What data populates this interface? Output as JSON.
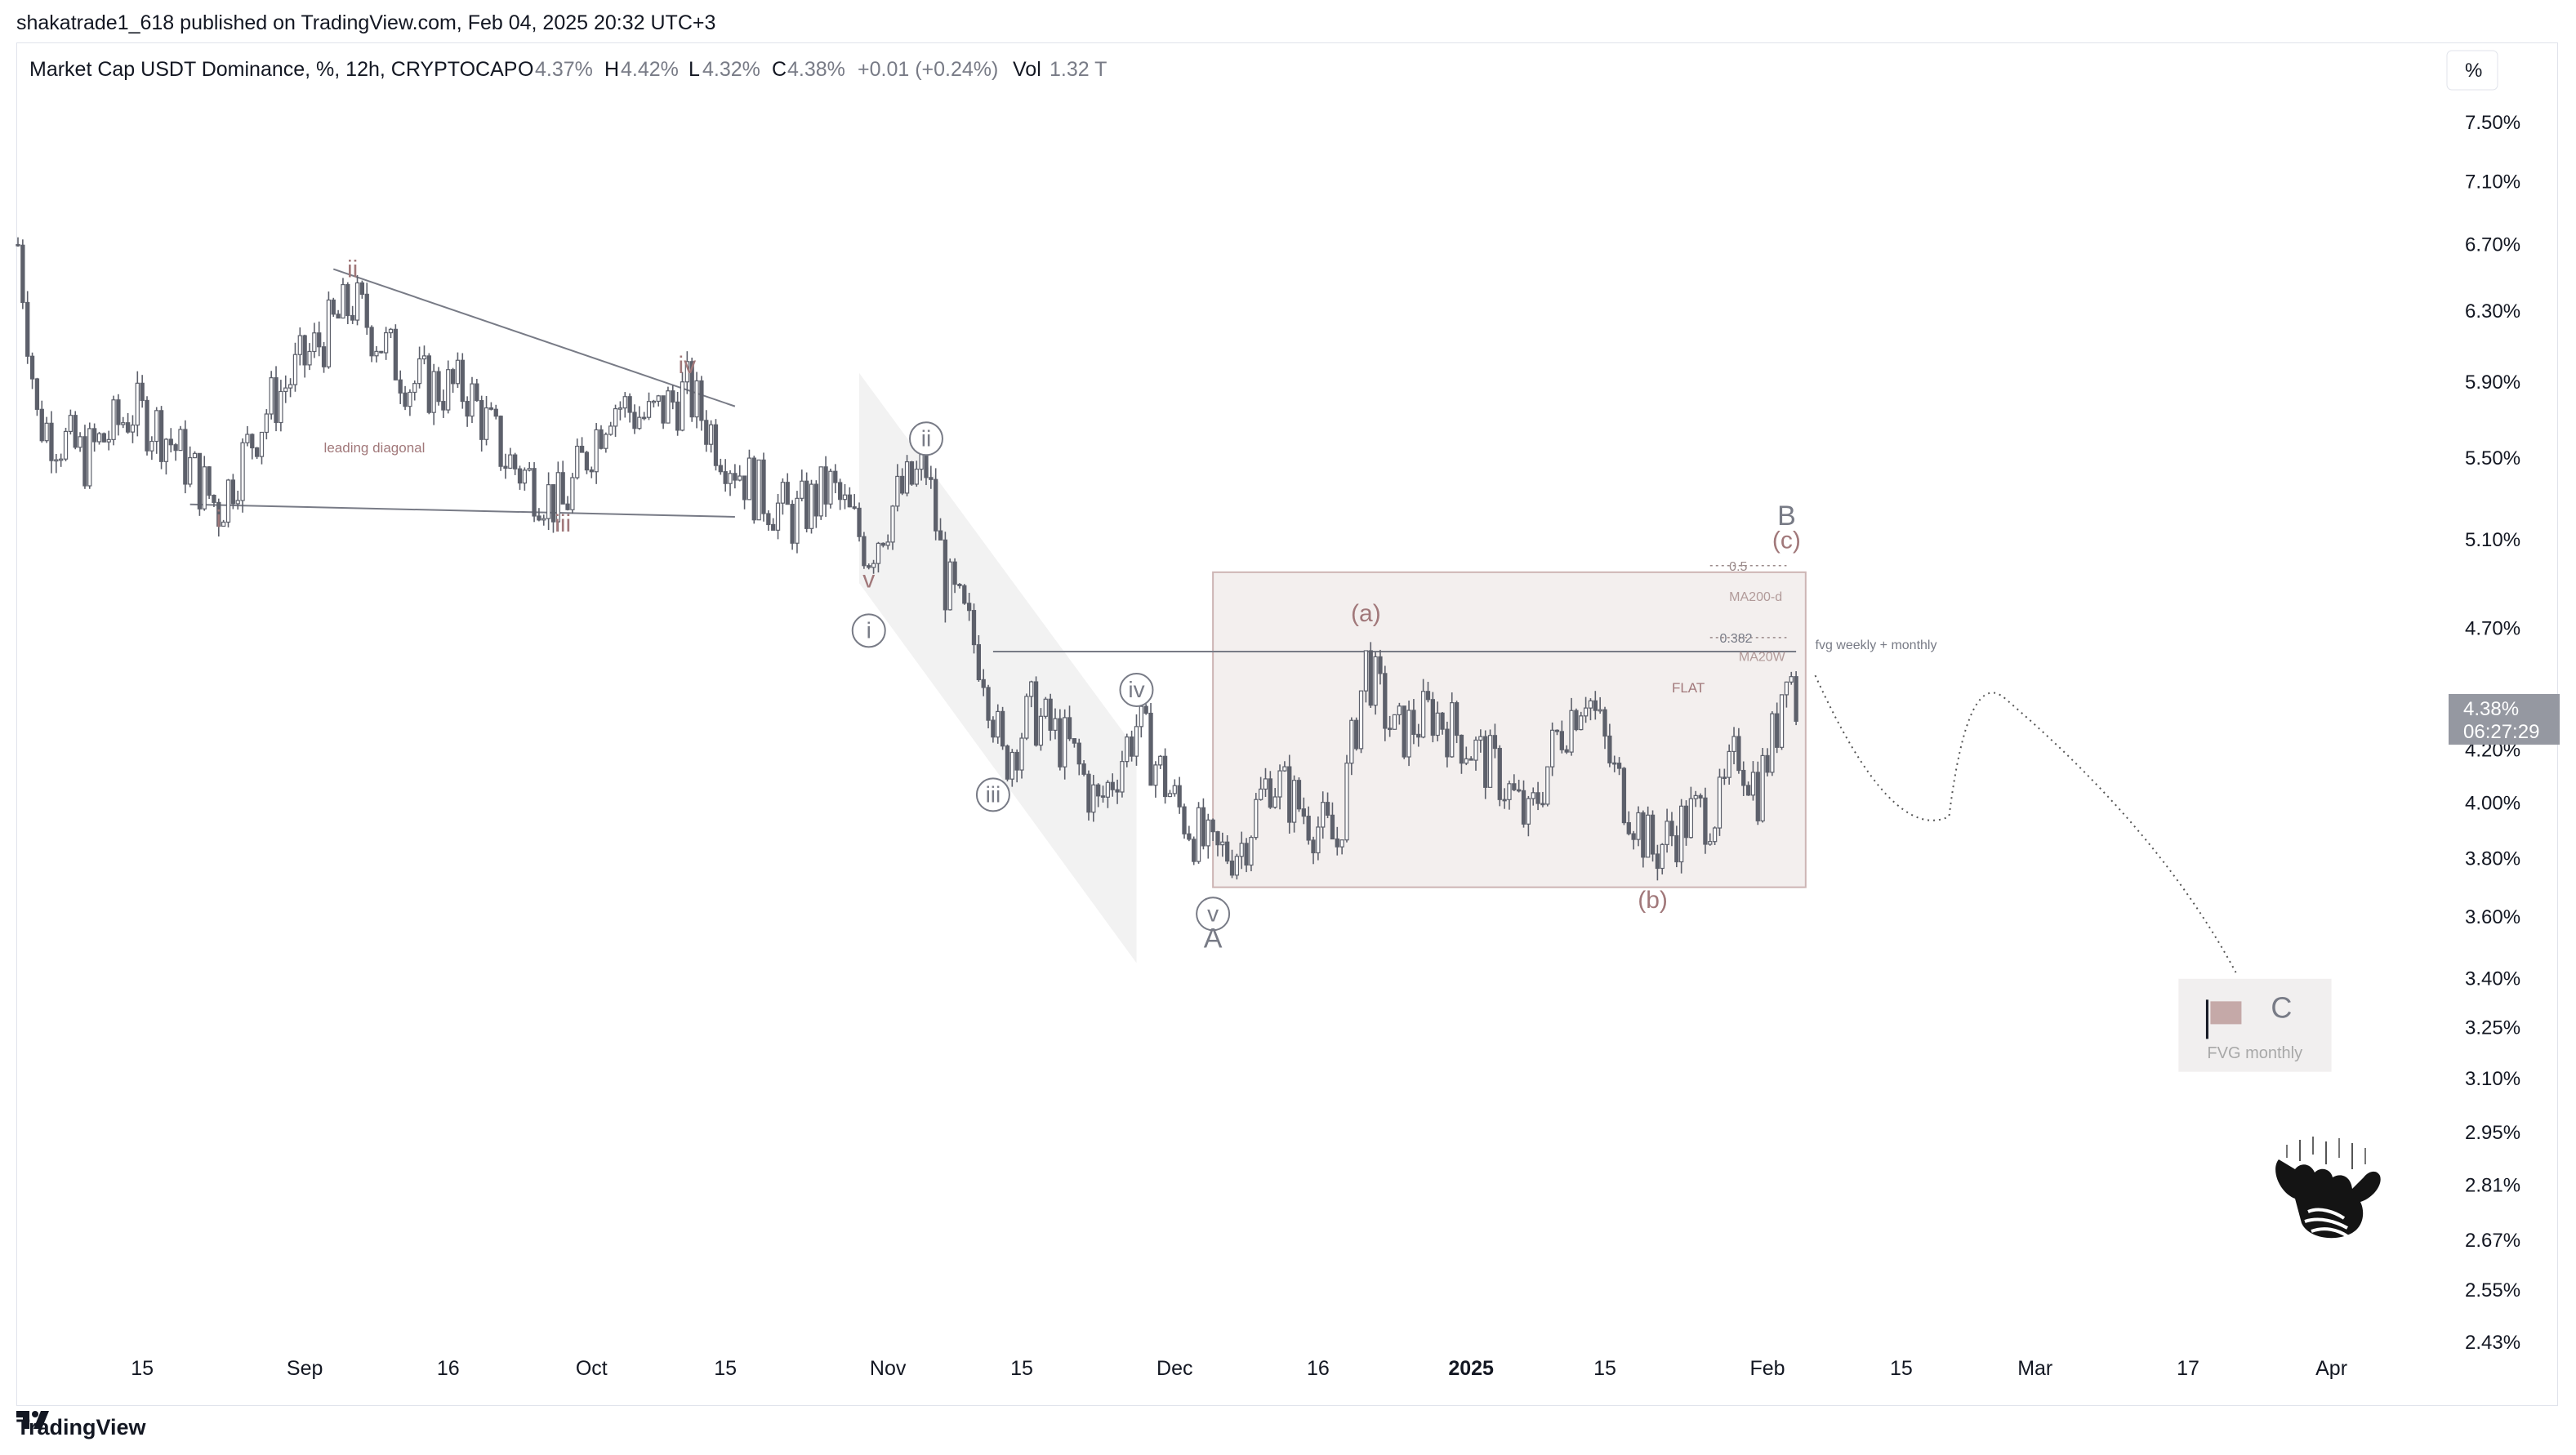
{
  "header": {
    "published_by": "shakatrade1_618 published on TradingView.com, Feb 04, 2025 20:32 UTC+3"
  },
  "legend": {
    "symbol": "Market Cap USDT Dominance, %, 12h, CRYPTOCAP",
    "o_label": "O",
    "o_value": "4.37%",
    "h_label": "H",
    "h_value": "4.42%",
    "l_label": "L",
    "l_value": "4.32%",
    "c_label": "C",
    "c_value": "4.38%",
    "change": "+0.01 (+0.24%)",
    "vol_label": "Vol",
    "vol_value": "1.32 T"
  },
  "scale_unit": "%",
  "price_tag": {
    "price": "4.38%",
    "countdown": "06:27:29"
  },
  "footer": {
    "brand": "TradingView"
  },
  "annotations": {
    "leading_diagonal": "leading diagonal",
    "flat": "FLAT",
    "fib_05": "0.5",
    "fib_0382": "0.382",
    "ma200d": "MA200-d",
    "ma20w": "MA20W",
    "fvg_weekly_monthly": "fvg weekly + monthly",
    "fvg_monthly": "FVG monthly",
    "target_c": "C"
  },
  "wave_labels": {
    "i": "i",
    "ii": "ii",
    "iii": "iii",
    "iv": "iv",
    "v": "v",
    "ci": "i",
    "cii": "ii",
    "ciii": "iii",
    "civ": "iv",
    "cv": "v",
    "A": "A",
    "B": "B",
    "a": "(a)",
    "b": "(b)",
    "c": "(c)"
  },
  "colors": {
    "candle": "#5d606b",
    "wave_brown": "#a1787a",
    "wave_gray": "#787b86",
    "box_fill": "#f3efee",
    "box_border": "#cdb5b4",
    "price_tag_bg": "#9598a1"
  },
  "chart_data": {
    "type": "candlestick",
    "symbol": "Market Cap USDT Dominance",
    "timeframe": "12h",
    "y_scale": "log",
    "ylim": [
      2.43,
      7.5
    ],
    "y_ticks": [
      "7.50%",
      "7.10%",
      "6.70%",
      "6.30%",
      "5.90%",
      "5.50%",
      "5.10%",
      "4.70%",
      "4.38%",
      "4.20%",
      "4.00%",
      "3.80%",
      "3.60%",
      "3.40%",
      "3.25%",
      "3.10%",
      "2.95%",
      "2.81%",
      "2.67%",
      "2.55%",
      "2.43%"
    ],
    "x_ticks": [
      "15",
      "Sep",
      "16",
      "Oct",
      "15",
      "Nov",
      "15",
      "Dec",
      "16",
      "2025",
      "15",
      "Feb",
      "15",
      "Mar",
      "17",
      "Apr"
    ],
    "x_range": [
      "2024-08-02",
      "2025-04-03"
    ],
    "last": {
      "open": 4.37,
      "high": 4.42,
      "low": 4.32,
      "close": 4.38,
      "change": 0.01,
      "change_pct": 0.24,
      "volume": "1.32 T"
    },
    "swing_points": [
      {
        "date": "2024-08-02",
        "value": 6.7
      },
      {
        "date": "2024-08-04",
        "value": 5.7
      },
      {
        "date": "2024-08-09",
        "value": 5.5
      },
      {
        "date": "2024-08-14",
        "value": 5.75
      },
      {
        "date": "2024-08-17",
        "value": 5.65
      },
      {
        "date": "2024-08-23",
        "value": 5.25
      },
      {
        "date": "2024-08-28",
        "value": 5.75
      },
      {
        "date": "2024-09-06",
        "value": 6.35
      },
      {
        "date": "2024-09-12",
        "value": 5.9
      },
      {
        "date": "2024-09-18",
        "value": 5.85
      },
      {
        "date": "2024-09-22",
        "value": 5.5
      },
      {
        "date": "2024-09-28",
        "value": 5.25
      },
      {
        "date": "2024-10-03",
        "value": 5.8
      },
      {
        "date": "2024-10-07",
        "value": 5.7
      },
      {
        "date": "2024-10-11",
        "value": 5.85
      },
      {
        "date": "2024-10-14",
        "value": 5.6
      },
      {
        "date": "2024-10-18",
        "value": 5.35
      },
      {
        "date": "2024-10-22",
        "value": 5.2
      },
      {
        "date": "2024-10-26",
        "value": 5.35
      },
      {
        "date": "2024-10-30",
        "value": 5.05
      },
      {
        "date": "2024-11-02",
        "value": 5.3
      },
      {
        "date": "2024-11-05",
        "value": 5.45
      },
      {
        "date": "2024-11-07",
        "value": 4.9
      },
      {
        "date": "2024-11-11",
        "value": 4.55
      },
      {
        "date": "2024-11-13",
        "value": 4.15
      },
      {
        "date": "2024-11-16",
        "value": 4.35
      },
      {
        "date": "2024-11-20",
        "value": 4.2
      },
      {
        "date": "2024-11-23",
        "value": 3.98
      },
      {
        "date": "2024-11-27",
        "value": 4.3
      },
      {
        "date": "2024-12-01",
        "value": 4.0
      },
      {
        "date": "2024-12-05",
        "value": 3.8
      },
      {
        "date": "2024-12-08",
        "value": 3.85
      },
      {
        "date": "2024-12-11",
        "value": 4.1
      },
      {
        "date": "2024-12-15",
        "value": 3.95
      },
      {
        "date": "2024-12-18",
        "value": 3.85
      },
      {
        "date": "2024-12-21",
        "value": 4.55
      },
      {
        "date": "2024-12-24",
        "value": 4.25
      },
      {
        "date": "2024-12-28",
        "value": 4.35
      },
      {
        "date": "2024-12-31",
        "value": 4.25
      },
      {
        "date": "2025-01-04",
        "value": 4.1
      },
      {
        "date": "2025-01-07",
        "value": 3.92
      },
      {
        "date": "2025-01-10",
        "value": 4.25
      },
      {
        "date": "2025-01-13",
        "value": 4.45
      },
      {
        "date": "2025-01-16",
        "value": 4.1
      },
      {
        "date": "2025-01-20",
        "value": 3.82
      },
      {
        "date": "2025-01-24",
        "value": 3.95
      },
      {
        "date": "2025-01-27",
        "value": 3.98
      },
      {
        "date": "2025-01-29",
        "value": 4.2
      },
      {
        "date": "2025-01-31",
        "value": 4.05
      },
      {
        "date": "2025-02-02",
        "value": 4.3
      },
      {
        "date": "2025-02-03",
        "value": 4.6
      },
      {
        "date": "2025-02-04",
        "value": 4.38
      }
    ],
    "projection": [
      {
        "date": "2025-02-06",
        "value": 4.5
      },
      {
        "date": "2025-02-20",
        "value": 3.95
      },
      {
        "date": "2025-02-26",
        "value": 4.4
      },
      {
        "date": "2025-03-22",
        "value": 3.42
      }
    ],
    "rectangles": [
      {
        "name": "FLAT",
        "start": "2024-12-05",
        "end": "2025-02-05",
        "top": 4.95,
        "bottom": 3.7
      },
      {
        "name": "FVG monthly",
        "start": "2025-03-16",
        "end": "2025-04-01",
        "top": 3.4,
        "bottom": 3.12
      }
    ],
    "horizontal_levels": [
      {
        "name": "MA20W",
        "value": 4.6,
        "start": "2024-11-12",
        "end": "2025-02-04"
      },
      {
        "name": "0.382",
        "value": 4.66,
        "start": "2025-01-26",
        "end": "2025-02-03"
      },
      {
        "name": "0.5",
        "value": 4.98,
        "start": "2025-01-26",
        "end": "2025-02-03"
      }
    ],
    "trendlines": [
      {
        "from": {
          "date": "2024-08-20",
          "value": 5.27
        },
        "to": {
          "date": "2024-10-16",
          "value": 5.21
        }
      },
      {
        "from": {
          "date": "2024-09-04",
          "value": 6.55
        },
        "to": {
          "date": "2024-10-16",
          "value": 5.77
        }
      }
    ],
    "wave_marks": [
      {
        "label": "i",
        "date": "2024-08-23",
        "value": 5.16,
        "style": "plain"
      },
      {
        "label": "ii",
        "date": "2024-09-06",
        "value": 6.5,
        "style": "plain"
      },
      {
        "label": "iii",
        "date": "2024-09-28",
        "value": 5.14,
        "style": "plain"
      },
      {
        "label": "iv",
        "date": "2024-10-11",
        "value": 5.95,
        "style": "plain"
      },
      {
        "label": "v",
        "date": "2024-10-30",
        "value": 4.88,
        "style": "plain"
      },
      {
        "label": "i",
        "date": "2024-10-30",
        "value": 4.69,
        "style": "circled"
      },
      {
        "label": "ii",
        "date": "2024-11-05",
        "value": 5.6,
        "style": "circled"
      },
      {
        "label": "iii",
        "date": "2024-11-12",
        "value": 4.03,
        "style": "circled"
      },
      {
        "label": "iv",
        "date": "2024-11-27",
        "value": 4.44,
        "style": "circled"
      },
      {
        "label": "v",
        "date": "2024-12-05",
        "value": 3.61,
        "style": "circled"
      },
      {
        "label": "A",
        "date": "2024-12-05",
        "value": 3.5,
        "style": "plain"
      },
      {
        "label": "(a)",
        "date": "2024-12-21",
        "value": 4.73,
        "style": "plain"
      },
      {
        "label": "(b)",
        "date": "2025-01-20",
        "value": 3.63,
        "style": "plain"
      },
      {
        "label": "(c)",
        "date": "2025-02-03",
        "value": 5.06,
        "style": "plain"
      },
      {
        "label": "B",
        "date": "2025-02-03",
        "value": 5.17,
        "style": "plain"
      }
    ]
  }
}
